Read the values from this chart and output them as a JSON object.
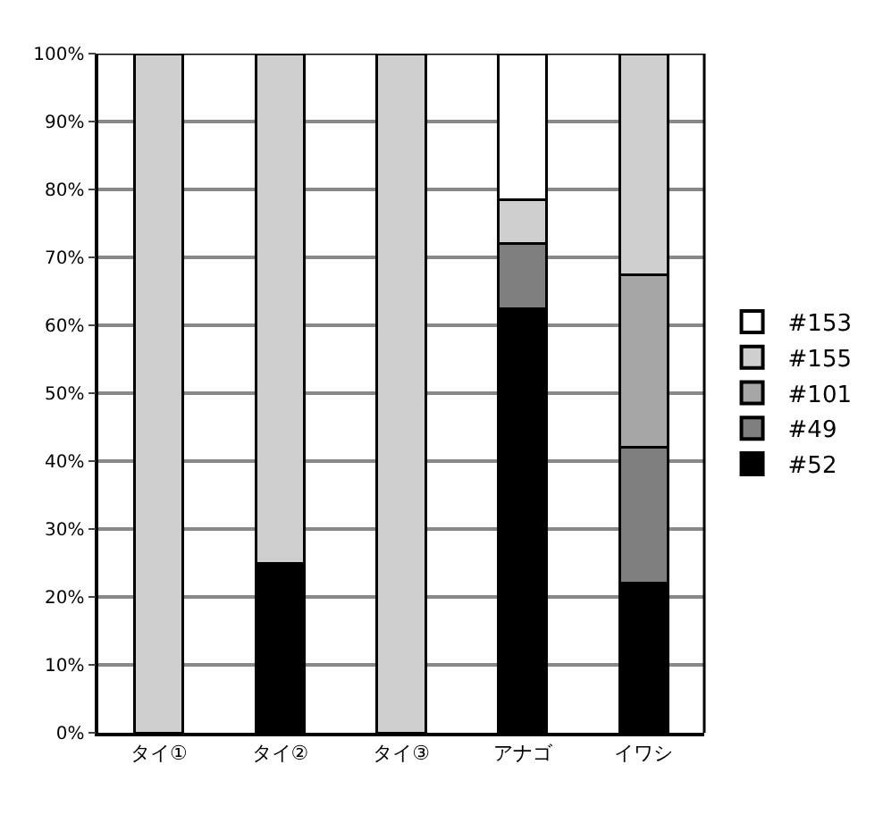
{
  "chart_data": {
    "type": "bar",
    "stacked": true,
    "categories": [
      "タイ①",
      "タイ②",
      "タイ③",
      "アナゴ",
      "イワシ"
    ],
    "series": [
      {
        "name": "#52",
        "color": "#000000",
        "values": [
          null,
          25,
          null,
          62.5,
          22
        ]
      },
      {
        "name": "#49",
        "color": "#7f7f7f",
        "values": [
          null,
          null,
          null,
          9.5,
          20
        ]
      },
      {
        "name": "#101",
        "color": "#a6a6a6",
        "values": [
          null,
          null,
          null,
          null,
          25.5
        ]
      },
      {
        "name": "#155",
        "color": "#cfcfcf",
        "values": [
          100,
          75,
          100,
          6.5,
          32.5
        ]
      },
      {
        "name": "#153",
        "color": "#ffffff",
        "values": [
          null,
          null,
          null,
          21.5,
          null
        ]
      }
    ],
    "ylim": [
      0,
      100
    ],
    "yticks": [
      {
        "value": 0,
        "label": "0%"
      },
      {
        "value": 10,
        "label": "10%"
      },
      {
        "value": 20,
        "label": "20%"
      },
      {
        "value": 30,
        "label": "30%"
      },
      {
        "value": 40,
        "label": "40%"
      },
      {
        "value": 50,
        "label": "50%"
      },
      {
        "value": 60,
        "label": "60%"
      },
      {
        "value": 70,
        "label": "70%"
      },
      {
        "value": 80,
        "label": "80%"
      },
      {
        "value": 90,
        "label": "90%"
      },
      {
        "value": 100,
        "label": "100%"
      }
    ],
    "grid": "y",
    "legend": "right"
  }
}
